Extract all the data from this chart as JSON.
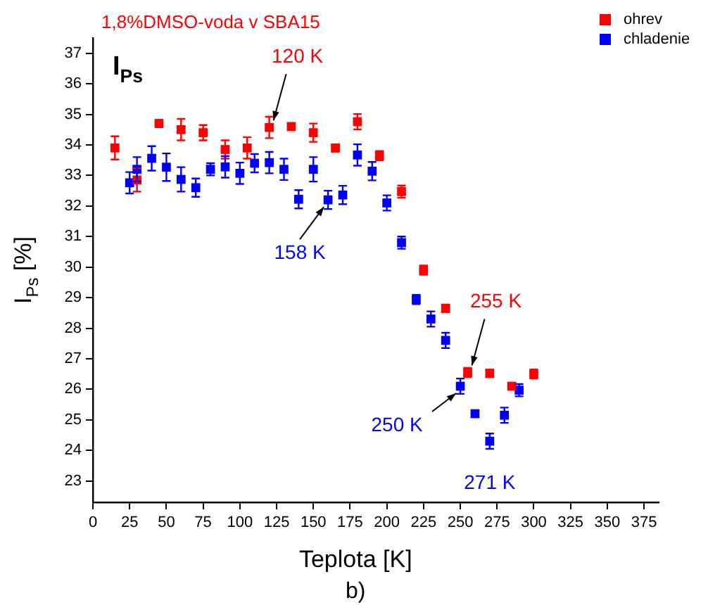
{
  "chart_data": {
    "type": "scatter",
    "title": "1,8%DMSO-voda v SBA15",
    "xlabel": "Teplota [K]",
    "ylabel": "I$_{Ps}$ [%]",
    "xlim": [
      0,
      385
    ],
    "xticks": [
      0,
      25,
      50,
      75,
      100,
      125,
      150,
      175,
      200,
      225,
      250,
      275,
      300,
      325,
      350,
      375
    ],
    "ylim": [
      22.3,
      37.5
    ],
    "yticks": [
      23,
      24,
      25,
      26,
      27,
      28,
      29,
      30,
      31,
      32,
      33,
      34,
      35,
      36,
      37
    ],
    "marker": "square",
    "legend": "top right",
    "grid": false,
    "series": [
      {
        "name": "ohrev",
        "color": "#ff0000",
        "x": [
          15,
          30,
          45,
          60,
          75,
          90,
          105,
          120,
          135,
          150,
          165,
          180,
          195,
          210,
          225,
          240,
          255,
          270,
          285,
          300
        ],
        "values": [
          33.9,
          32.85,
          34.7,
          34.5,
          34.4,
          33.85,
          33.9,
          34.57,
          34.6,
          34.4,
          33.9,
          34.76,
          33.65,
          32.47,
          29.9,
          28.65,
          26.55,
          26.52,
          26.1,
          26.5
        ],
        "errors": [
          0.38,
          0.38,
          0.12,
          0.35,
          0.25,
          0.3,
          0.35,
          0.35,
          0.1,
          0.3,
          0.12,
          0.25,
          0.15,
          0.2,
          0.15,
          0.12,
          0.15,
          0.12,
          0.1,
          0.15
        ]
      },
      {
        "name": "chladenie",
        "color": "#0000ff",
        "x": [
          25,
          30,
          40,
          50,
          60,
          70,
          80,
          90,
          100,
          110,
          120,
          130,
          140,
          150,
          160,
          170,
          180,
          190,
          200,
          210,
          220,
          230,
          240,
          250,
          260,
          270,
          280,
          290
        ],
        "values": [
          32.76,
          33.2,
          33.56,
          33.27,
          32.87,
          32.6,
          33.2,
          33.28,
          33.07,
          33.4,
          33.42,
          33.2,
          32.22,
          33.2,
          32.2,
          32.36,
          33.67,
          33.14,
          32.1,
          30.8,
          28.94,
          28.3,
          27.6,
          26.1,
          25.2,
          24.3,
          25.15,
          25.97
        ],
        "errors": [
          0.35,
          0.4,
          0.4,
          0.45,
          0.4,
          0.3,
          0.2,
          0.35,
          0.35,
          0.3,
          0.35,
          0.35,
          0.3,
          0.4,
          0.3,
          0.3,
          0.35,
          0.3,
          0.25,
          0.2,
          0.15,
          0.25,
          0.25,
          0.25,
          0.1,
          0.25,
          0.25,
          0.2
        ]
      }
    ],
    "annotations": [
      {
        "text": "120 K",
        "x": 120,
        "y": 34.57
      },
      {
        "text": "158 K",
        "x": 160,
        "y": 32.2
      },
      {
        "text": "255 K",
        "x": 255,
        "y": 26.55
      },
      {
        "text": "250 K",
        "x": 250,
        "y": 26.1
      },
      {
        "text": "271 K",
        "x": 270,
        "y": 24.3
      },
      "I$_{Ps}$",
      "b)"
    ]
  }
}
